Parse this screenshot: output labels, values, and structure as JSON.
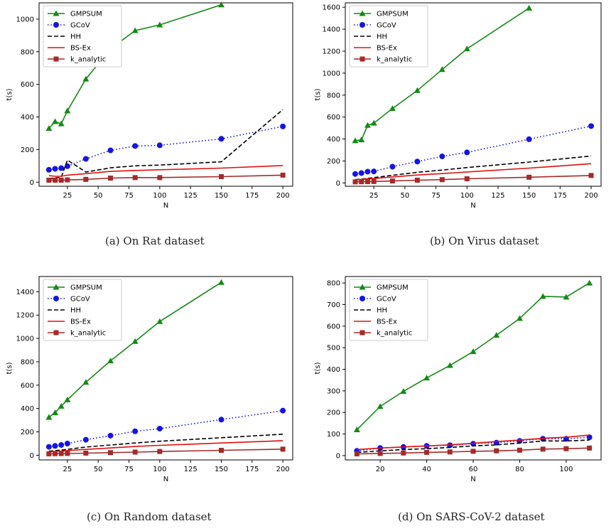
{
  "charts": [
    {
      "caption": "(a) On Rat dataset",
      "chart_data": {
        "type": "line",
        "xlabel": "N",
        "ylabel": "t(s)",
        "xlim": [
          2,
          208
        ],
        "ylim": [
          -25,
          1100
        ],
        "xticks": [
          25,
          50,
          75,
          100,
          125,
          150,
          175,
          200
        ],
        "yticks": [
          0,
          200,
          400,
          600,
          800,
          1000
        ],
        "legend": "top-left",
        "series": [
          {
            "name": "GMPSUM",
            "style": "green-triangle",
            "x": [
              10,
              15,
              20,
              25,
              40,
              60,
              80,
              100,
              150
            ],
            "y": [
              330,
              372,
              358,
              438,
              633,
              818,
              930,
              965,
              1088
            ]
          },
          {
            "name": "GCoV",
            "style": "blue-dotted-circle",
            "x": [
              10,
              15,
              20,
              25,
              40,
              60,
              80,
              100,
              150,
              200
            ],
            "y": [
              76,
              82,
              86,
              98,
              143,
              195,
              222,
              226,
              266,
              342
            ]
          },
          {
            "name": "HH",
            "style": "black-dashed",
            "x": [
              10,
              15,
              20,
              25,
              40,
              60,
              80,
              100,
              150,
              200
            ],
            "y": [
              22,
              26,
              30,
              135,
              62,
              88,
              100,
              105,
              125,
              445
            ]
          },
          {
            "name": "BS-Ex",
            "style": "red-solid",
            "x": [
              10,
              15,
              20,
              25,
              40,
              60,
              80,
              100,
              150,
              200
            ],
            "y": [
              40,
              36,
              36,
              43,
              52,
              66,
              72,
              76,
              86,
              102
            ]
          },
          {
            "name": "k_analytic",
            "style": "brown-square",
            "x": [
              10,
              15,
              20,
              25,
              40,
              60,
              80,
              100,
              150,
              200
            ],
            "y": [
              12,
              12,
              12,
              14,
              17,
              25,
              28,
              28,
              34,
              43
            ]
          }
        ]
      }
    },
    {
      "caption": "(b) On Virus dataset",
      "chart_data": {
        "type": "line",
        "xlabel": "N",
        "ylabel": "t(s)",
        "xlim": [
          2,
          208
        ],
        "ylim": [
          -30,
          1640
        ],
        "xticks": [
          25,
          50,
          75,
          100,
          125,
          150,
          175,
          200
        ],
        "yticks": [
          0,
          200,
          400,
          600,
          800,
          1000,
          1200,
          1400,
          1600
        ],
        "legend": "top-left",
        "series": [
          {
            "name": "GMPSUM",
            "style": "green-triangle",
            "x": [
              10,
              15,
              20,
              25,
              40,
              60,
              80,
              100,
              150
            ],
            "y": [
              385,
              393,
              525,
              545,
              678,
              842,
              1033,
              1222,
              1592
            ]
          },
          {
            "name": "GCoV",
            "style": "blue-dotted-circle",
            "x": [
              10,
              15,
              20,
              25,
              40,
              60,
              80,
              100,
              150,
              200
            ],
            "y": [
              82,
              90,
              103,
              105,
              148,
              195,
              242,
              278,
              398,
              518
            ]
          },
          {
            "name": "HH",
            "style": "black-dashed",
            "x": [
              10,
              15,
              20,
              25,
              40,
              60,
              80,
              100,
              150,
              200
            ],
            "y": [
              30,
              35,
              42,
              48,
              70,
              97,
              117,
              140,
              190,
              245
            ]
          },
          {
            "name": "BS-Ex",
            "style": "red-solid",
            "x": [
              10,
              15,
              20,
              25,
              40,
              60,
              80,
              100,
              150,
              200
            ],
            "y": [
              28,
              32,
              37,
              40,
              55,
              72,
              85,
              100,
              135,
              175
            ]
          },
          {
            "name": "k_analytic",
            "style": "brown-square",
            "x": [
              10,
              15,
              20,
              25,
              40,
              60,
              80,
              100,
              150,
              200
            ],
            "y": [
              10,
              11,
              12,
              13,
              18,
              25,
              30,
              38,
              52,
              68
            ]
          }
        ]
      }
    },
    {
      "caption": "(c) On Random dataset",
      "chart_data": {
        "type": "line",
        "xlabel": "N",
        "ylabel": "t(s)",
        "xlim": [
          2,
          208
        ],
        "ylim": [
          -40,
          1530
        ],
        "xticks": [
          25,
          50,
          75,
          100,
          125,
          150,
          175,
          200
        ],
        "yticks": [
          0,
          200,
          400,
          600,
          800,
          1000,
          1200,
          1400
        ],
        "legend": "top-left",
        "series": [
          {
            "name": "GMPSUM",
            "style": "green-triangle",
            "x": [
              10,
              15,
              20,
              25,
              40,
              60,
              80,
              100,
              150
            ],
            "y": [
              325,
              365,
              420,
              475,
              625,
              808,
              975,
              1145,
              1480
            ]
          },
          {
            "name": "GCoV",
            "style": "blue-dotted-circle",
            "x": [
              10,
              15,
              20,
              25,
              40,
              60,
              80,
              100,
              150,
              200
            ],
            "y": [
              72,
              80,
              88,
              100,
              133,
              168,
              205,
              228,
              305,
              382
            ]
          },
          {
            "name": "HH",
            "style": "black-dashed",
            "x": [
              10,
              15,
              20,
              25,
              40,
              60,
              80,
              100,
              150,
              200
            ],
            "y": [
              35,
              40,
              45,
              50,
              70,
              88,
              105,
              120,
              150,
              180
            ]
          },
          {
            "name": "BS-Ex",
            "style": "red-solid",
            "x": [
              10,
              15,
              20,
              25,
              40,
              60,
              80,
              100,
              150,
              200
            ],
            "y": [
              30,
              33,
              36,
              40,
              50,
              62,
              75,
              85,
              105,
              125
            ]
          },
          {
            "name": "k_analytic",
            "style": "brown-square",
            "x": [
              10,
              15,
              20,
              25,
              40,
              60,
              80,
              100,
              150,
              200
            ],
            "y": [
              12,
              13,
              14,
              15,
              18,
              22,
              27,
              32,
              42,
              52
            ]
          }
        ]
      }
    },
    {
      "caption": "(d) On SARS-CoV-2 dataset",
      "chart_data": {
        "type": "line",
        "xlabel": "N",
        "ylabel": "t(s)",
        "xlim": [
          5,
          115
        ],
        "ylim": [
          -20,
          830
        ],
        "xticks": [
          20,
          40,
          60,
          80,
          100
        ],
        "yticks": [
          0,
          100,
          200,
          300,
          400,
          500,
          600,
          700,
          800
        ],
        "legend": "top-left",
        "series": [
          {
            "name": "GMPSUM",
            "style": "green-triangle",
            "x": [
              10,
              20,
              30,
              40,
              50,
              60,
              70,
              80,
              90,
              100,
              110
            ],
            "y": [
              120,
              228,
              298,
              360,
              418,
              482,
              558,
              636,
              738,
              735,
              800
            ]
          },
          {
            "name": "GCoV",
            "style": "blue-dotted-circle",
            "x": [
              10,
              20,
              30,
              40,
              50,
              60,
              70,
              80,
              90,
              100,
              110
            ],
            "y": [
              22,
              35,
              40,
              45,
              48,
              55,
              60,
              68,
              78,
              78,
              85
            ]
          },
          {
            "name": "HH",
            "style": "black-dashed",
            "x": [
              10,
              20,
              30,
              40,
              50,
              60,
              70,
              80,
              90,
              100,
              110
            ],
            "y": [
              15,
              22,
              28,
              32,
              38,
              45,
              50,
              58,
              68,
              68,
              72
            ]
          },
          {
            "name": "BS-Ex",
            "style": "red-solid",
            "x": [
              10,
              20,
              30,
              40,
              50,
              60,
              70,
              80,
              90,
              100,
              110
            ],
            "y": [
              28,
              35,
              40,
              45,
              50,
              57,
              65,
              72,
              80,
              85,
              95
            ]
          },
          {
            "name": "k_analytic",
            "style": "brown-square",
            "x": [
              10,
              20,
              30,
              40,
              50,
              60,
              70,
              80,
              90,
              100,
              110
            ],
            "y": [
              8,
              10,
              12,
              15,
              17,
              20,
              22,
              25,
              30,
              32,
              35
            ]
          }
        ]
      }
    }
  ],
  "colors": {
    "green-triangle": "#138a13",
    "blue-dotted-circle": "#1414e6",
    "black-dashed": "#000000",
    "red-solid": "#e01010",
    "brown-square": "#a52a2a"
  }
}
